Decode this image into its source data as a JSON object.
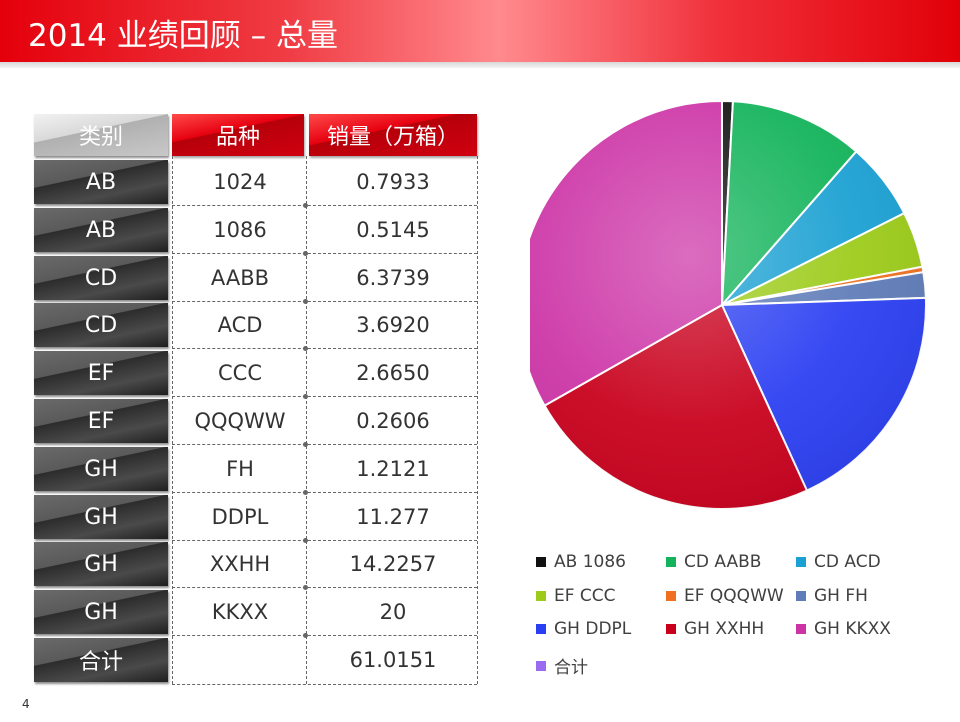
{
  "title": "2014 业绩回顾 – 总量",
  "page_number": "4",
  "table": {
    "headers": [
      "类别",
      "品种",
      "销量（万箱）"
    ],
    "rows": [
      {
        "cat": "AB",
        "variety": "1024",
        "sales": "0.7933"
      },
      {
        "cat": "AB",
        "variety": "1086",
        "sales": "0.5145"
      },
      {
        "cat": "CD",
        "variety": "AABB",
        "sales": "6.3739"
      },
      {
        "cat": "CD",
        "variety": "ACD",
        "sales": "3.6920"
      },
      {
        "cat": "EF",
        "variety": "CCC",
        "sales": "2.6650"
      },
      {
        "cat": "EF",
        "variety": "QQQWW",
        "sales": "0.2606"
      },
      {
        "cat": "GH",
        "variety": "FH",
        "sales": "1.2121"
      },
      {
        "cat": "GH",
        "variety": "DDPL",
        "sales": "11.277"
      },
      {
        "cat": "GH",
        "variety": "XXHH",
        "sales": "14.2257"
      },
      {
        "cat": "GH",
        "variety": "KKXX",
        "sales": "20"
      },
      {
        "cat": "合计",
        "variety": "",
        "sales": "61.0151"
      }
    ]
  },
  "chart_data": {
    "type": "pie",
    "slices": [
      {
        "label": "AB 1086",
        "value": 0.5145,
        "color": "#111111"
      },
      {
        "label": "CD AABB",
        "value": 6.3739,
        "color": "#12b35a"
      },
      {
        "label": "CD ACD",
        "value": 3.692,
        "color": "#1aa0d2"
      },
      {
        "label": "EF CCC",
        "value": 2.665,
        "color": "#9ccb19"
      },
      {
        "label": "EF QQQWW",
        "value": 0.2606,
        "color": "#f07020"
      },
      {
        "label": "GH FH",
        "value": 1.2121,
        "color": "#5f7cb8"
      },
      {
        "label": "GH DDPL",
        "value": 11.277,
        "color": "#2b3ff2"
      },
      {
        "label": "GH XXHH",
        "value": 14.2257,
        "color": "#c8001c"
      },
      {
        "label": "GH KKXX",
        "value": 20,
        "color": "#cc34a6"
      }
    ],
    "legend": [
      {
        "label": "AB 1086",
        "color": "#111111"
      },
      {
        "label": "CD AABB",
        "color": "#12b35a"
      },
      {
        "label": "CD ACD",
        "color": "#1aa0d2"
      },
      {
        "label": "EF CCC",
        "color": "#9ccb19"
      },
      {
        "label": "EF QQQWW",
        "color": "#f07020"
      },
      {
        "label": "GH FH",
        "color": "#5f7cb8"
      },
      {
        "label": "GH DDPL",
        "color": "#2b3ff2"
      },
      {
        "label": "GH XXHH",
        "color": "#c8001c"
      },
      {
        "label": "GH KKXX",
        "color": "#cc34a6"
      },
      {
        "label": "合计",
        "color": "#9a6af0"
      }
    ],
    "legend_position": "bottom"
  }
}
